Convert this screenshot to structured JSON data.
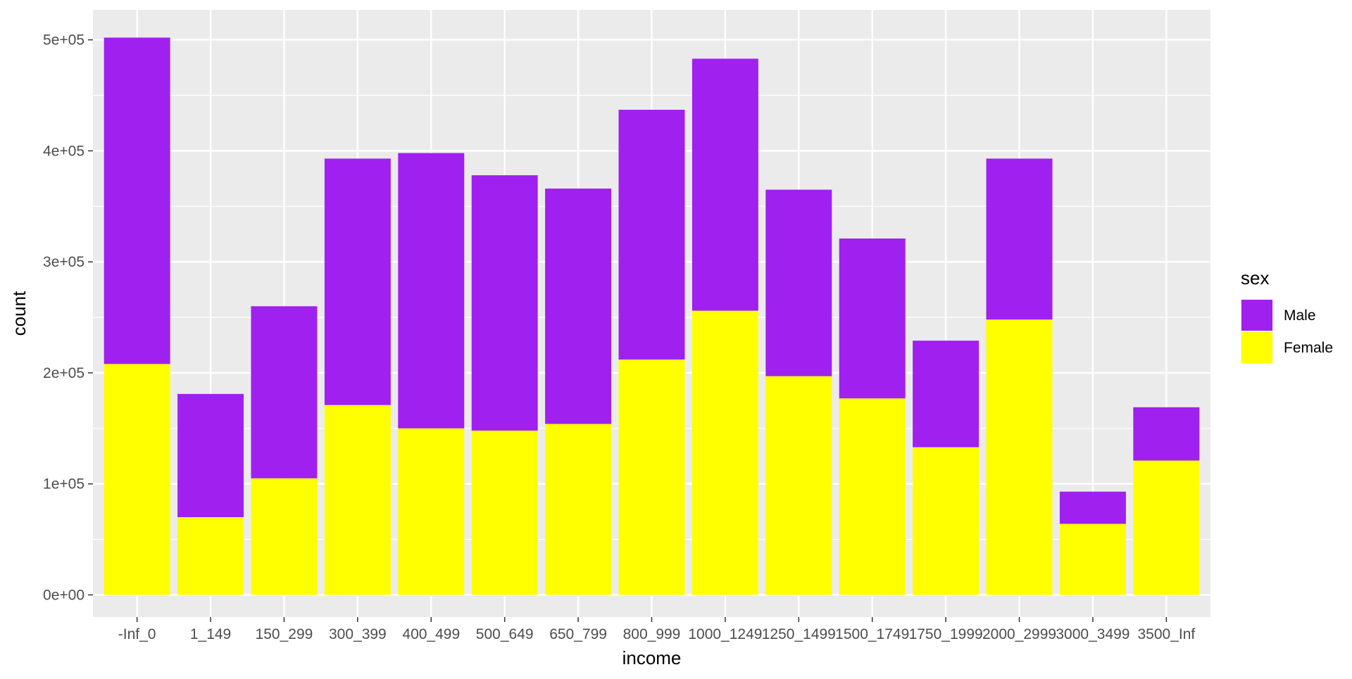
{
  "chart_data": {
    "type": "bar",
    "stacked": true,
    "title": "",
    "xlabel": "income",
    "ylabel": "count",
    "categories": [
      "-Inf_0",
      "1_149",
      "150_299",
      "300_399",
      "400_499",
      "500_649",
      "650_799",
      "800_999",
      "1000_1249",
      "1250_1499",
      "1500_1749",
      "1750_1999",
      "2000_2999",
      "3000_3499",
      "3500_Inf"
    ],
    "series": [
      {
        "name": "Female",
        "color": "#FFFF00",
        "values": [
          208000,
          70000,
          105000,
          171000,
          150000,
          148000,
          154000,
          212000,
          256000,
          197000,
          177000,
          133000,
          248000,
          64000,
          121000
        ]
      },
      {
        "name": "Male",
        "color": "#A020F0",
        "values": [
          294000,
          111000,
          155000,
          222000,
          248000,
          230000,
          212000,
          225000,
          227000,
          168000,
          144000,
          96000,
          145000,
          29000,
          48000
        ]
      }
    ],
    "ylim": [
      -20000,
      527000
    ],
    "yticks": [
      0,
      100000,
      200000,
      300000,
      400000,
      500000
    ],
    "ytick_labels": [
      "0e+00",
      "1e+05",
      "2e+05",
      "3e+05",
      "4e+05",
      "5e+05"
    ],
    "grid": true,
    "panel_background": "#EBEBEB",
    "grid_color": "#FFFFFF",
    "legend": {
      "title": "sex",
      "position": "right",
      "entries": [
        {
          "label": "Male",
          "color": "#A020F0"
        },
        {
          "label": "Female",
          "color": "#FFFF00"
        }
      ]
    }
  }
}
